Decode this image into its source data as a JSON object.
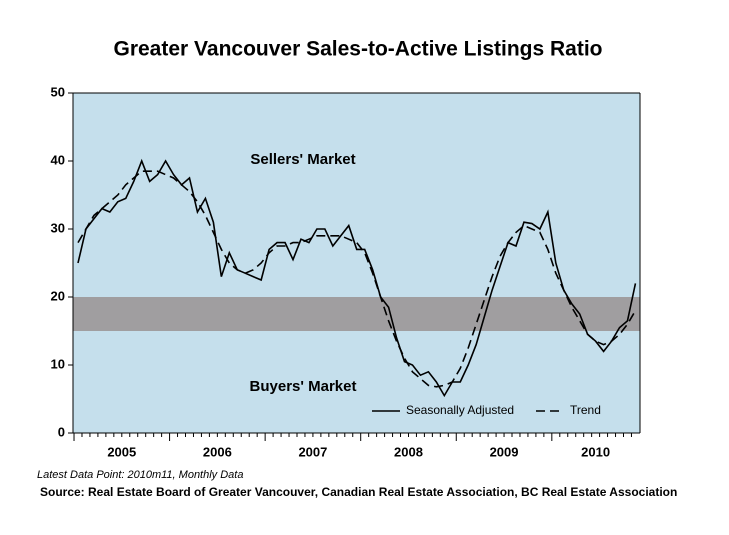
{
  "chart_data": {
    "type": "line",
    "title": "Greater Vancouver Sales-to-Active Listings Ratio",
    "note": "Latest Data Point: 2010m11, Monthly Data",
    "source": "Source: Real Estate Board of Greater Vancouver, Canadian Real Estate Association, BC Real Estate Association",
    "annotations": [
      "Sellers' Market",
      "Buyers' Market"
    ],
    "years": [
      "2005",
      "2006",
      "2007",
      "2008",
      "2009",
      "2010"
    ],
    "ylim": [
      0,
      50
    ],
    "yticks": [
      0,
      10,
      20,
      30,
      40,
      50
    ],
    "band": [
      15,
      20
    ],
    "band_color": "#a09ea0",
    "background": "#c5dfec",
    "series": [
      {
        "name": "Seasonally Adjusted",
        "color": "#000000",
        "dash": false,
        "values": [
          25,
          30,
          31.5,
          33,
          32.5,
          34,
          34.5,
          37,
          40,
          37,
          38,
          40,
          38,
          36.5,
          37.5,
          32.5,
          34.5,
          31,
          23,
          26.5,
          24,
          23.5,
          23,
          22.5,
          27,
          28,
          28,
          25.5,
          28.5,
          28,
          30,
          30,
          27.5,
          29,
          30.5,
          27,
          27,
          24,
          20,
          18.5,
          14,
          10.5,
          10,
          8.5,
          9,
          7.5,
          5.5,
          7.5,
          7.5,
          10,
          13,
          17,
          21,
          24.5,
          28,
          27.5,
          31,
          30.8,
          30,
          32.5,
          25,
          21,
          19,
          17.5,
          14.5,
          13.5,
          12,
          13.5,
          15.5,
          16.5,
          22
        ]
      },
      {
        "name": "Trend",
        "color": "#000000",
        "dash": true,
        "values": [
          28,
          30,
          32,
          33,
          34,
          35,
          36.5,
          37.5,
          38.5,
          38.5,
          38.5,
          38,
          37.5,
          36.5,
          35.5,
          34,
          32,
          29.5,
          27,
          25,
          24,
          23.5,
          24,
          25,
          26.5,
          27.5,
          27.5,
          28,
          28,
          28.5,
          29,
          29,
          29,
          29,
          28.5,
          28,
          26.5,
          23.5,
          20,
          16.5,
          13.5,
          11,
          9,
          8,
          7,
          6.8,
          7,
          7.5,
          9.5,
          12.5,
          16,
          19.5,
          23,
          26,
          28,
          29.5,
          30.5,
          30,
          29.5,
          27,
          23.5,
          21,
          18.5,
          16.5,
          14.5,
          13.5,
          13,
          13.5,
          14.5,
          16,
          18
        ]
      }
    ]
  }
}
